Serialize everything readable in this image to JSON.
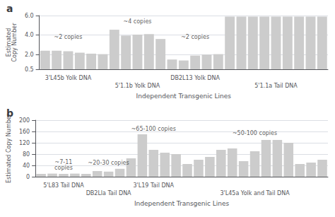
{
  "chart_data": [
    {
      "type": "bar",
      "title": "a",
      "categories": [
        null,
        null,
        "3'L45b Yolk DNA",
        null,
        null,
        null,
        null,
        null,
        "5'1.1b Yolk DNA",
        null,
        null,
        null,
        null,
        "DB2L13 Yolk DNA",
        null,
        null,
        null,
        null,
        null,
        null,
        "5'1.1a Tail DNA",
        null,
        null,
        null,
        null
      ],
      "values": [
        2.4,
        2.4,
        2.35,
        2.2,
        2.1,
        2.05,
        4.55,
        3.95,
        4.05,
        4.1,
        3.6,
        1.5,
        1.4,
        1.9,
        2.0,
        2.05,
        5.9,
        5.9,
        5.9,
        5.9,
        5.9,
        5.9,
        5.9,
        5.9,
        5.9
      ],
      "color": "#cccccc",
      "xlabel": "Independent Transgenic Lines",
      "ylabel": "Estimated\nCopy Number",
      "ylim": [
        0.5,
        6.0
      ],
      "yticks": [
        0.5,
        {
          "value": 2.0,
          "label": "2.0"
        },
        {
          "value": 4.0,
          "label": "4.0"
        },
        {
          "value": 6.0,
          "label": "6.0"
        }
      ],
      "grid": true,
      "annotations": [
        {
          "text": "~2 copies",
          "x": "3'L45b Yolk DNA",
          "y": 3.5
        },
        {
          "text": "~4 copies",
          "x": "5'1.1b Yolk DNA",
          "y": 5.1
        },
        {
          "text": "~2 copies",
          "x": "DB2L13 Yolk DNA",
          "y": 3.5
        }
      ]
    },
    {
      "type": "bar",
      "title": "b",
      "categories": [
        null,
        null,
        "5'L83 Tail DNA",
        null,
        null,
        null,
        "DB2Lla Tail DNA",
        null,
        null,
        null,
        "3'L19 Tail DNA",
        null,
        null,
        null,
        null,
        null,
        null,
        null,
        null,
        "3'L45a Yolk and Tail DNA",
        null,
        null,
        null,
        null,
        null,
        null
      ],
      "values": [
        10,
        11,
        10,
        11,
        10,
        20,
        18,
        28,
        65,
        150,
        95,
        85,
        80,
        45,
        60,
        70,
        95,
        100,
        55,
        90,
        130,
        130,
        120,
        45,
        50,
        60
      ],
      "color": "#cccccc",
      "xlabel": "Independent Transgenic Lines",
      "ylabel": "Estimated Copy Number",
      "ylim": [
        0,
        200
      ],
      "yticks": [
        0,
        40,
        80,
        120,
        160,
        200
      ],
      "grid": true,
      "annotations": [
        {
          "text": "~7-11\ncopies",
          "x": "5'L83 Tail DNA",
          "y": 22
        },
        {
          "text": "~20-30 copies",
          "x": "DB2Lla Tail DNA",
          "y": 40
        },
        {
          "text": "~65-100 copies",
          "x": "3'L19 Tail DNA",
          "y": 158
        },
        {
          "text": "~50-100 copies",
          "x": "3'L45a Yolk and Tail DNA",
          "y": 143
        }
      ]
    }
  ]
}
